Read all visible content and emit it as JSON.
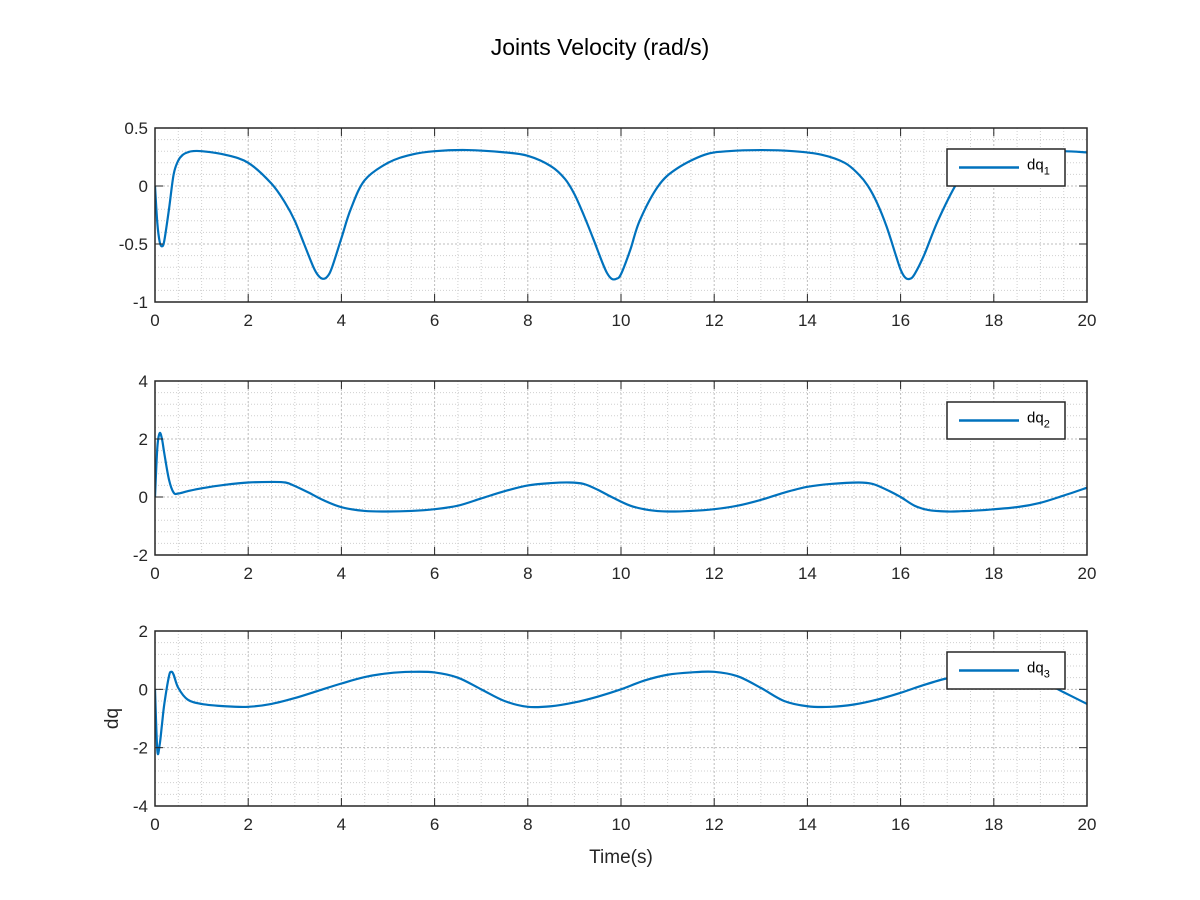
{
  "figure": {
    "title": "Joints Velocity (rad/s)",
    "background": "#ffffff",
    "line_color": "#0072BD",
    "grid": "major+minor dotted"
  },
  "chart_data": [
    {
      "type": "line",
      "xlabel": "",
      "ylabel": "",
      "xlim": [
        0,
        20
      ],
      "ylim": [
        -1,
        0.5
      ],
      "xticks": [
        0,
        2,
        4,
        6,
        8,
        10,
        12,
        14,
        16,
        18,
        20
      ],
      "yticks": [
        -1,
        -0.5,
        0,
        0.5
      ],
      "ytick_labels": [
        "-1",
        "-0.5",
        "0",
        "0.5"
      ],
      "legend": {
        "position": "top-right",
        "entries": [
          {
            "base": "dq",
            "sub": "1"
          }
        ]
      },
      "series": [
        {
          "name": "dq1",
          "x": [
            0,
            0.05,
            0.1,
            0.15,
            0.2,
            0.3,
            0.4,
            0.5,
            0.6,
            0.7,
            0.8,
            1.0,
            1.5,
            2.0,
            2.5,
            2.8,
            3.0,
            3.2,
            3.4,
            3.5,
            3.6,
            3.7,
            3.8,
            4.0,
            4.2,
            4.5,
            5.0,
            5.5,
            6.0,
            6.7,
            7.5,
            8.0,
            8.5,
            8.8,
            9.0,
            9.2,
            9.4,
            9.6,
            9.7,
            9.8,
            9.9,
            10.0,
            10.2,
            10.4,
            10.8,
            11.2,
            11.8,
            12.3,
            13.0,
            13.7,
            14.3,
            14.8,
            15.1,
            15.3,
            15.5,
            15.7,
            15.9,
            16.0,
            16.1,
            16.2,
            16.3,
            16.5,
            16.8,
            17.2,
            17.5,
            17.8,
            18.2,
            18.6,
            19.0,
            19.5,
            20.0
          ],
          "y": [
            0.0,
            -0.32,
            -0.48,
            -0.52,
            -0.47,
            -0.2,
            0.1,
            0.22,
            0.27,
            0.29,
            0.3,
            0.3,
            0.27,
            0.2,
            0.02,
            -0.15,
            -0.3,
            -0.5,
            -0.7,
            -0.77,
            -0.8,
            -0.78,
            -0.7,
            -0.45,
            -0.2,
            0.05,
            0.2,
            0.27,
            0.3,
            0.31,
            0.29,
            0.26,
            0.17,
            0.06,
            -0.07,
            -0.25,
            -0.45,
            -0.66,
            -0.75,
            -0.8,
            -0.8,
            -0.76,
            -0.55,
            -0.3,
            0.0,
            0.15,
            0.27,
            0.3,
            0.31,
            0.3,
            0.27,
            0.2,
            0.1,
            0.0,
            -0.15,
            -0.35,
            -0.6,
            -0.72,
            -0.79,
            -0.8,
            -0.76,
            -0.6,
            -0.3,
            0.02,
            0.17,
            0.25,
            0.29,
            0.3,
            0.3,
            0.3,
            0.29
          ]
        }
      ]
    },
    {
      "type": "line",
      "xlabel": "",
      "ylabel": "",
      "xlim": [
        0,
        20
      ],
      "ylim": [
        -2,
        4
      ],
      "xticks": [
        0,
        2,
        4,
        6,
        8,
        10,
        12,
        14,
        16,
        18,
        20
      ],
      "yticks": [
        -2,
        0,
        2,
        4
      ],
      "ytick_labels": [
        "-2",
        "0",
        "2",
        "4"
      ],
      "legend": {
        "position": "top-right",
        "entries": [
          {
            "base": "dq",
            "sub": "2"
          }
        ]
      },
      "series": [
        {
          "name": "dq2",
          "x": [
            0,
            0.05,
            0.1,
            0.15,
            0.2,
            0.3,
            0.4,
            0.5,
            0.7,
            1.0,
            1.5,
            2.0,
            2.5,
            2.8,
            3.0,
            3.3,
            3.6,
            4.0,
            4.5,
            5.0,
            5.5,
            6.0,
            6.5,
            7.0,
            7.5,
            8.0,
            8.5,
            8.9,
            9.2,
            9.5,
            9.8,
            10.2,
            10.6,
            11.0,
            11.5,
            12.0,
            12.5,
            13.0,
            13.5,
            14.0,
            14.5,
            15.1,
            15.4,
            15.7,
            16.0,
            16.3,
            16.6,
            17.0,
            17.3,
            17.8,
            18.5,
            19.0,
            19.5,
            20.0
          ],
          "y": [
            0.0,
            1.7,
            2.2,
            2.0,
            1.5,
            0.6,
            0.15,
            0.12,
            0.2,
            0.3,
            0.42,
            0.5,
            0.52,
            0.5,
            0.38,
            0.15,
            -0.1,
            -0.35,
            -0.48,
            -0.5,
            -0.48,
            -0.42,
            -0.3,
            -0.05,
            0.2,
            0.4,
            0.48,
            0.5,
            0.45,
            0.25,
            0.0,
            -0.3,
            -0.45,
            -0.5,
            -0.48,
            -0.42,
            -0.3,
            -0.1,
            0.15,
            0.35,
            0.45,
            0.5,
            0.45,
            0.25,
            0.0,
            -0.3,
            -0.45,
            -0.5,
            -0.49,
            -0.45,
            -0.35,
            -0.2,
            0.05,
            0.32
          ]
        }
      ]
    },
    {
      "type": "line",
      "xlabel": "Time(s)",
      "ylabel": "dq",
      "xlim": [
        0,
        20
      ],
      "ylim": [
        -4,
        2
      ],
      "xticks": [
        0,
        2,
        4,
        6,
        8,
        10,
        12,
        14,
        16,
        18,
        20
      ],
      "yticks": [
        -4,
        -2,
        0,
        2
      ],
      "ytick_labels": [
        "-4",
        "-2",
        "0",
        "2"
      ],
      "legend": {
        "position": "top-right",
        "entries": [
          {
            "base": "dq",
            "sub": "3"
          }
        ]
      },
      "series": [
        {
          "name": "dq3",
          "x": [
            0,
            0.05,
            0.1,
            0.15,
            0.2,
            0.3,
            0.35,
            0.4,
            0.5,
            0.7,
            1.0,
            1.5,
            2.0,
            2.5,
            3.0,
            3.5,
            4.0,
            4.5,
            5.0,
            5.5,
            6.0,
            6.5,
            7.0,
            7.5,
            8.0,
            8.5,
            9.0,
            9.5,
            10.0,
            10.5,
            11.0,
            11.5,
            12.0,
            12.5,
            13.0,
            13.5,
            14.0,
            14.5,
            15.0,
            15.5,
            16.0,
            16.5,
            17.0,
            17.5,
            18.0,
            18.5,
            19.0,
            19.5,
            20.0
          ],
          "y": [
            0.0,
            -2.1,
            -1.9,
            -1.2,
            -0.5,
            0.45,
            0.6,
            0.5,
            0.05,
            -0.35,
            -0.5,
            -0.58,
            -0.6,
            -0.5,
            -0.3,
            -0.05,
            0.2,
            0.42,
            0.55,
            0.6,
            0.58,
            0.4,
            0.0,
            -0.4,
            -0.6,
            -0.58,
            -0.45,
            -0.25,
            0.0,
            0.3,
            0.5,
            0.58,
            0.6,
            0.45,
            0.05,
            -0.4,
            -0.58,
            -0.6,
            -0.52,
            -0.35,
            -0.12,
            0.15,
            0.38,
            0.52,
            0.58,
            0.52,
            0.3,
            -0.1,
            -0.5
          ]
        }
      ]
    }
  ]
}
